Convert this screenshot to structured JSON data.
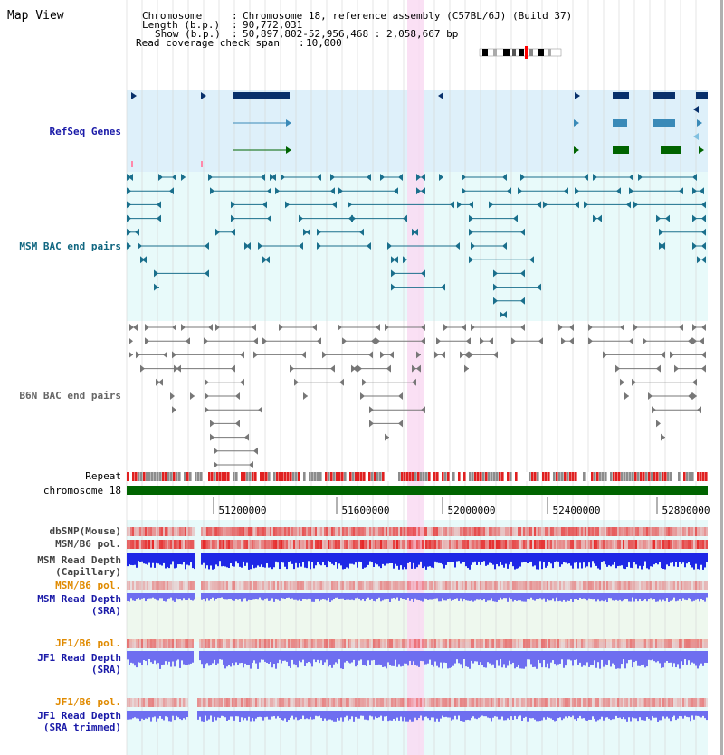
{
  "app": {
    "title": "Map View"
  },
  "info": {
    "chromosome_label": "Chromosome",
    "chromosome_value": "Chromosome 18, reference assembly (C57BL/6J) (Build 37)",
    "length_label": "Length (b.p.)",
    "length_value": "90,772,031",
    "show_label": "Show (b.p.)",
    "show_value": "50,897,802-52,956,468 : 2,058,667 bp",
    "read_coverage_label": "Read coverage check span",
    "read_coverage_value": "10,000"
  },
  "tracks": {
    "refseq": "RefSeq Genes",
    "msm_bac": "MSM BAC end pairs",
    "b6n_bac": "B6N BAC end pairs",
    "repeat": "Repeat",
    "chromosome": "chromosome 18",
    "dbsnp": "dbSNP(Mouse)",
    "msm_b6_pol_1": "MSM/B6 pol.",
    "msm_read_depth_cap_1": "MSM Read Depth",
    "msm_read_depth_cap_2": "(Capillary)",
    "msm_b6_pol_2": "MSM/B6 pol.",
    "msm_read_depth_sra_1": "MSM Read Depth",
    "msm_read_depth_sra_2": "(SRA)",
    "jf1_b6_pol_1": "JF1/B6 pol.",
    "jf1_read_depth_sra_1": "JF1 Read Depth",
    "jf1_read_depth_sra_2": "(SRA)",
    "jf1_b6_pol_2": "JF1/B6 pol.",
    "jf1_read_depth_trim_1": "JF1 Read Depth",
    "jf1_read_depth_trim_2": "(SRA trimmed)"
  },
  "axis": {
    "ticks": [
      "51200000",
      "51600000",
      "52000000",
      "52400000",
      "52800000"
    ]
  },
  "colors": {
    "refseq_bg": "#def0fa",
    "bac_bg": "#e8fafa",
    "highlight": "#f9dbf2",
    "gene_dark": "#08306b",
    "gene_mid": "#3a8ab8",
    "gene_green": "#006400",
    "msm_feature": "#1a6f8c",
    "b6n_feature": "#777777",
    "repeat_red": "#e02020",
    "repeat_gray": "#8c8c8c",
    "chrom_green": "#006400",
    "snp_red": "#ff6464",
    "depth_blue": "#1e28e6",
    "depth_light": "#6e6ef0",
    "label_blue": "#1a1aa8",
    "label_teal": "#106680",
    "label_orange": "#e08a00"
  }
}
